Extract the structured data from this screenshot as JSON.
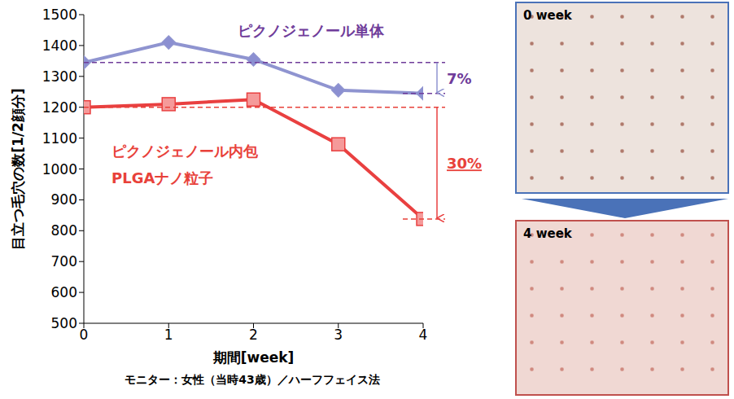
{
  "chart_data": {
    "type": "line",
    "x": [
      0,
      1,
      2,
      3,
      4
    ],
    "xlim": [
      0,
      4
    ],
    "xticks": [
      0,
      1,
      2,
      3,
      4
    ],
    "ylim": [
      500,
      1500
    ],
    "yticks": [
      500,
      600,
      700,
      800,
      900,
      1000,
      1100,
      1200,
      1300,
      1400,
      1500
    ],
    "x_label": "期間[week]",
    "y_label": "目立つ毛穴の数[1/2顔分]",
    "grid": false,
    "note": "モニター：女性（当時43歳）／ハーフフェイス法",
    "series": [
      {
        "name": "ピクノジェノール単体",
        "color": "#8f94d0",
        "marker": "diamond",
        "values": [
          1345,
          1410,
          1355,
          1255,
          1245
        ],
        "annotation": "7%"
      },
      {
        "name": "ピクノジェノール内包\nPLGAナノ粒子",
        "color": "#e94040",
        "marker": "square",
        "values": [
          1200,
          1210,
          1225,
          1080,
          838
        ],
        "annotation": "30%"
      }
    ]
  },
  "photos": [
    {
      "label": "0 week"
    },
    {
      "label": "4 week"
    }
  ]
}
